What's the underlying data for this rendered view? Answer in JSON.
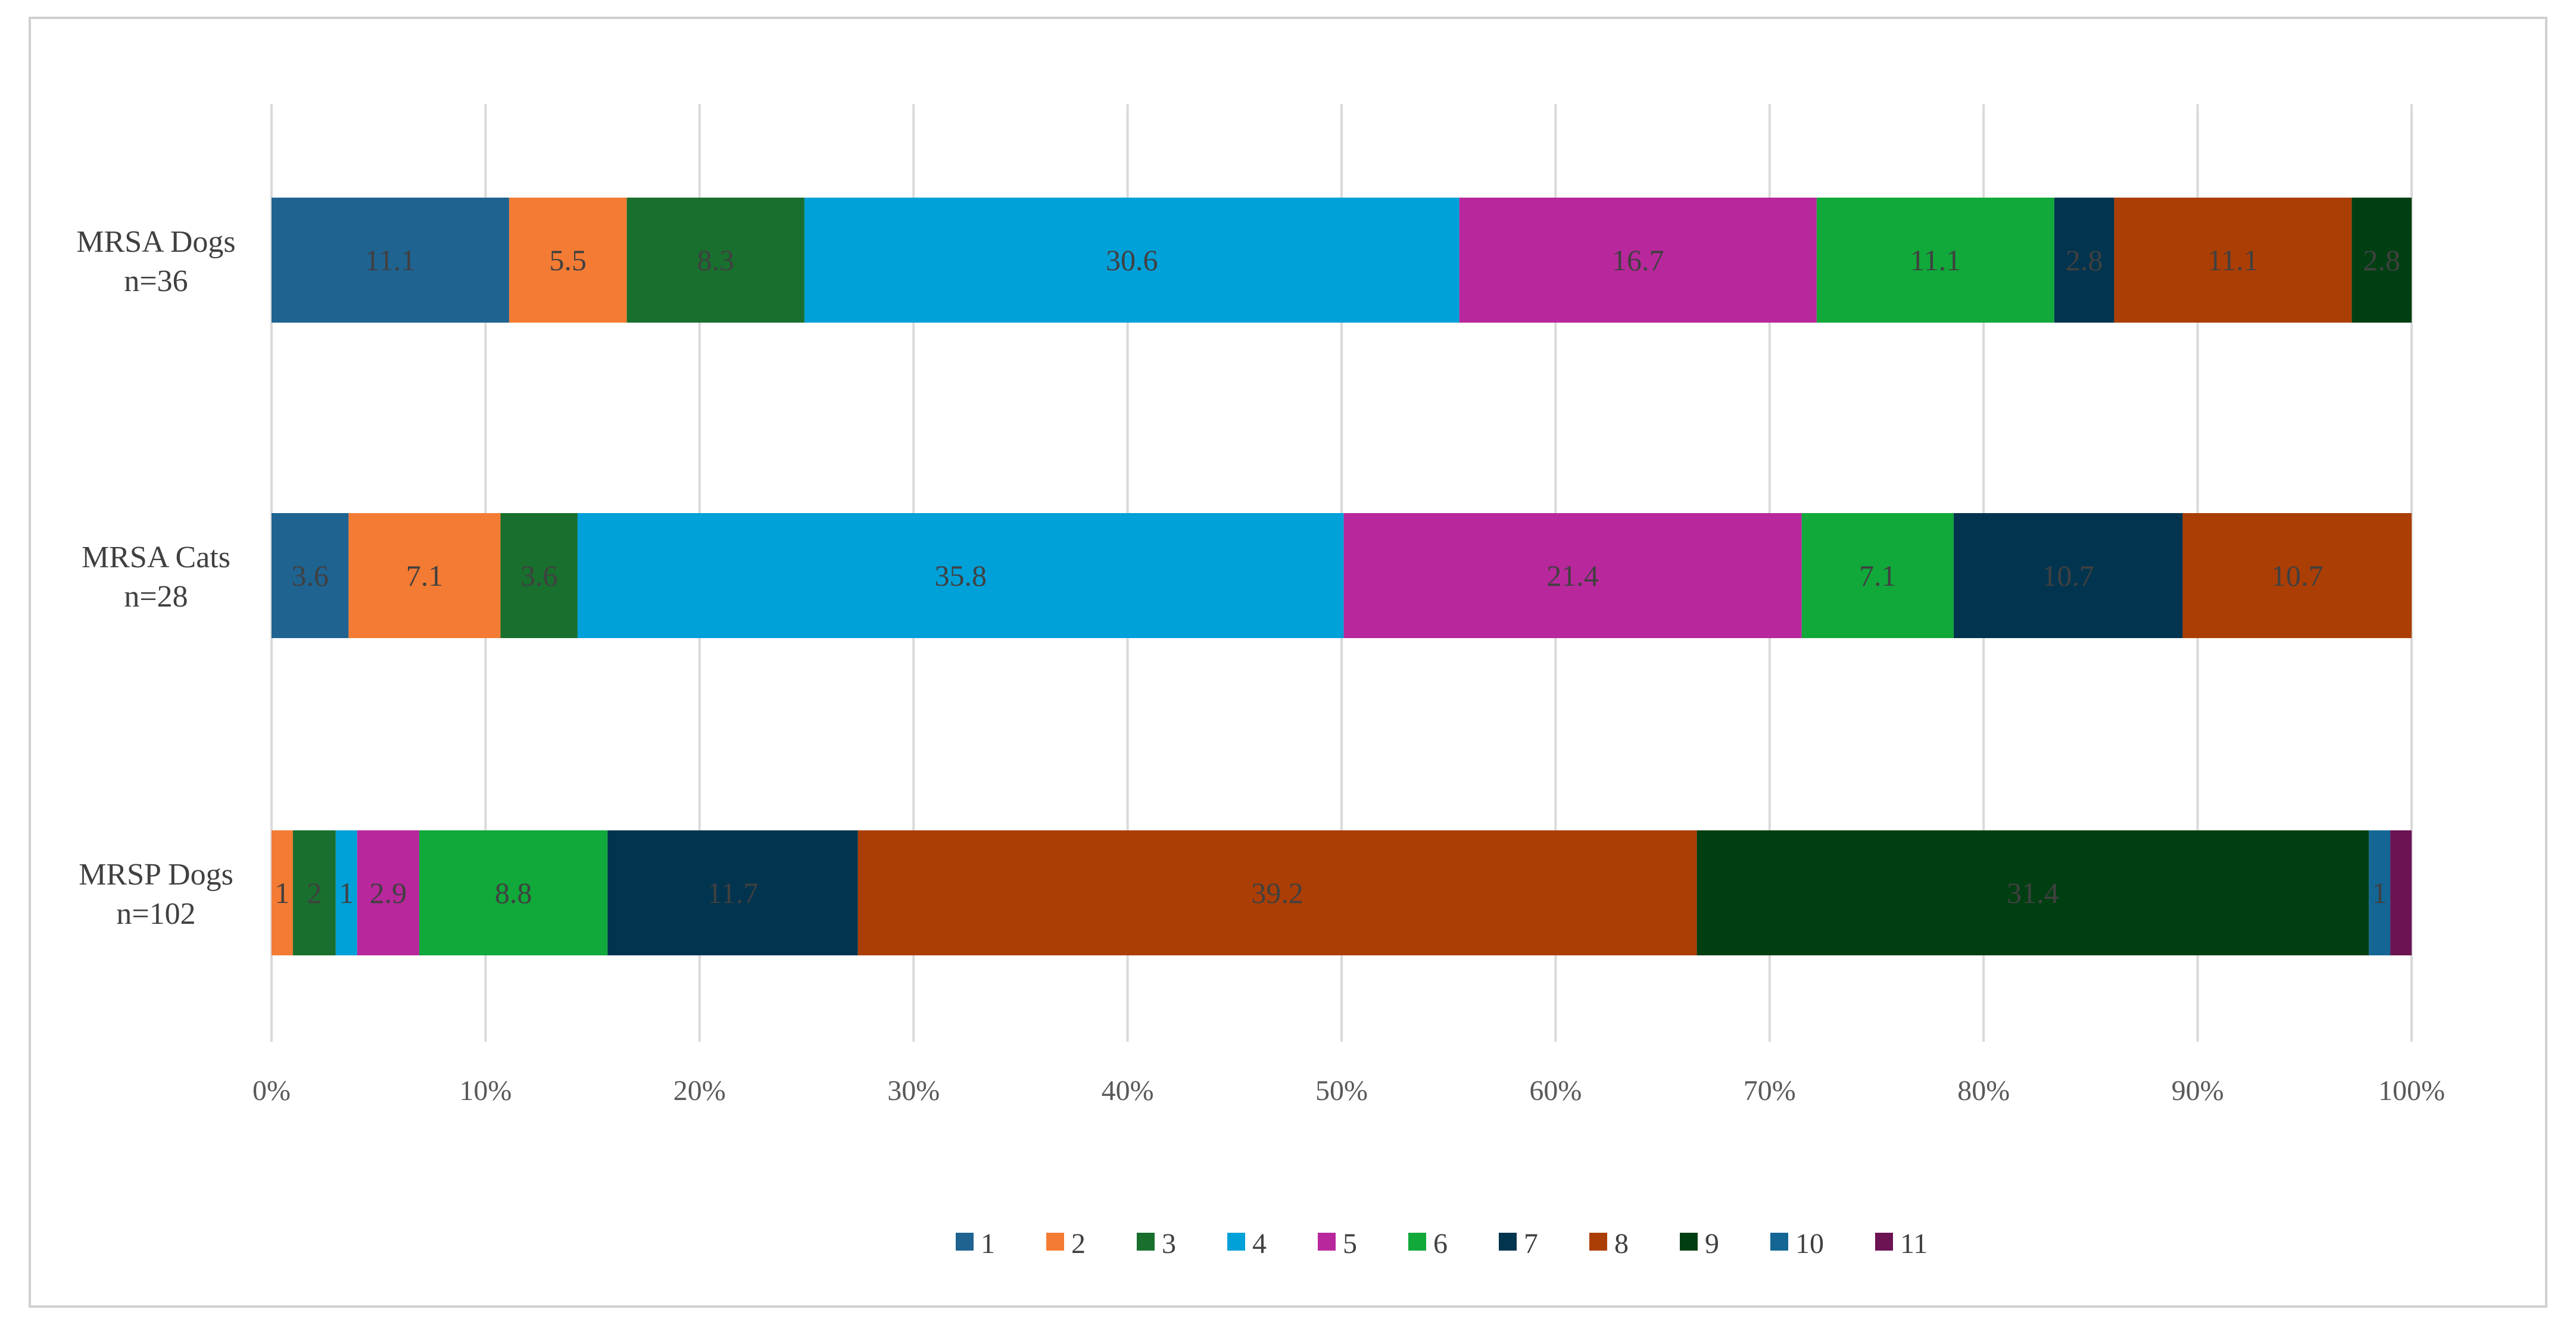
{
  "chart_data": {
    "type": "bar",
    "orientation": "horizontal",
    "stacked": "percent",
    "title": "",
    "xlabel": "",
    "ylabel": "",
    "xlim": [
      0,
      100
    ],
    "x_ticks": [
      "0%",
      "10%",
      "20%",
      "30%",
      "40%",
      "50%",
      "60%",
      "70%",
      "80%",
      "90%",
      "100%"
    ],
    "grid": "vertical",
    "legend_position": "bottom",
    "categories": [
      {
        "line1": "MRSA Dogs",
        "line2": "n=36"
      },
      {
        "line1": "MRSA Cats",
        "line2": "n=28"
      },
      {
        "line1": "MRSP Dogs",
        "line2": "n=102"
      }
    ],
    "series": [
      {
        "name": "1",
        "color": "#1f6391",
        "values": [
          11.1,
          3.6,
          0
        ]
      },
      {
        "name": "2",
        "color": "#f47b33",
        "values": [
          5.5,
          7.1,
          1
        ]
      },
      {
        "name": "3",
        "color": "#186f2e",
        "values": [
          8.3,
          3.6,
          2
        ]
      },
      {
        "name": "4",
        "color": "#00a0d8",
        "values": [
          30.6,
          35.8,
          1
        ]
      },
      {
        "name": "5",
        "color": "#b8279c",
        "values": [
          16.7,
          21.4,
          2.9
        ]
      },
      {
        "name": "6",
        "color": "#10a93a",
        "values": [
          11.1,
          7.1,
          8.8
        ]
      },
      {
        "name": "7",
        "color": "#00344f",
        "values": [
          2.8,
          10.7,
          11.7
        ]
      },
      {
        "name": "8",
        "color": "#ab3e04",
        "values": [
          11.1,
          10.7,
          39.2
        ]
      },
      {
        "name": "9",
        "color": "#003f12",
        "values": [
          2.8,
          0,
          31.4
        ]
      },
      {
        "name": "10",
        "color": "#146695",
        "values": [
          0,
          0,
          1
        ]
      },
      {
        "name": "11",
        "color": "#6b1353",
        "values": [
          0,
          0,
          1
        ]
      }
    ],
    "data_labels": [
      [
        "11.1",
        "5.5",
        "8.3",
        "30.6",
        "16.7",
        "11.1",
        "2.8",
        "11.1",
        "2.8",
        "",
        ""
      ],
      [
        "3.6",
        "7.1",
        "3.6",
        "35.8",
        "21.4",
        "7.1",
        "10.7",
        "10.7",
        "",
        "",
        ""
      ],
      [
        "",
        "1",
        "2",
        "1",
        "2.9",
        "8.8",
        "11.7",
        "39.2",
        "31.4",
        "1",
        ""
      ]
    ]
  }
}
